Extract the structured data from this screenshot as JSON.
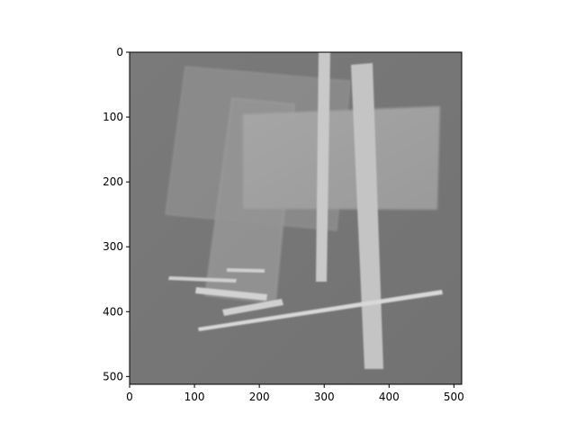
{
  "image_panel": {
    "kind": "grayscale-image",
    "background_gray": "#777777",
    "shape_gray": "#cdcdcd",
    "x_ticks": [
      {
        "value": 0,
        "label": "0"
      },
      {
        "value": 100,
        "label": "100"
      },
      {
        "value": 200,
        "label": "200"
      },
      {
        "value": 300,
        "label": "300"
      },
      {
        "value": 400,
        "label": "400"
      },
      {
        "value": 500,
        "label": "500"
      }
    ],
    "y_ticks": [
      {
        "value": 0,
        "label": "0"
      },
      {
        "value": 100,
        "label": "100"
      },
      {
        "value": 200,
        "label": "200"
      },
      {
        "value": 300,
        "label": "300"
      },
      {
        "value": 400,
        "label": "400"
      },
      {
        "value": 500,
        "label": "500"
      }
    ],
    "x_range": [
      0,
      512
    ],
    "y_range": [
      512,
      0
    ]
  }
}
